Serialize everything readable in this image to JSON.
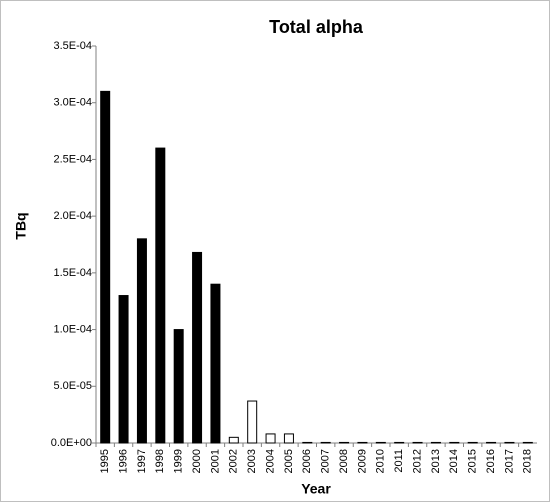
{
  "chart_data": {
    "type": "bar",
    "title": "Total alpha",
    "y_label": "TBq",
    "x_label": "Year",
    "categories": [
      "1995",
      "1996",
      "1997",
      "1998",
      "1999",
      "2000",
      "2001",
      "2002",
      "2003",
      "2004",
      "2005",
      "2006",
      "2007",
      "2008",
      "2009",
      "2010",
      "2011",
      "2012",
      "2013",
      "2014",
      "2015",
      "2016",
      "2017",
      "2018"
    ],
    "values": [
      0.00031,
      0.00013,
      0.00018,
      0.00026,
      0.0001,
      0.000168,
      0.00014,
      5e-06,
      3.7e-05,
      8e-06,
      8e-06,
      5e-07,
      5e-07,
      5e-07,
      5e-07,
      5e-07,
      5e-07,
      5e-07,
      5e-07,
      5e-07,
      5e-07,
      5e-07,
      5e-07,
      5e-07
    ],
    "colors": [
      "#000000",
      "#000000",
      "#000000",
      "#000000",
      "#000000",
      "#000000",
      "#000000",
      "#ffffff",
      "#ffffff",
      "#ffffff",
      "#ffffff",
      "#ffffff",
      "#ffffff",
      "#ffffff",
      "#ffffff",
      "#ffffff",
      "#ffffff",
      "#ffffff",
      "#ffffff",
      "#ffffff",
      "#ffffff",
      "#ffffff",
      "#ffffff",
      "#ffffff"
    ],
    "ylim": [
      0,
      0.00035
    ],
    "yticks": [
      {
        "value": 0,
        "label": "0.0E+00"
      },
      {
        "value": 5e-05,
        "label": "5.0E-05"
      },
      {
        "value": 0.0001,
        "label": "1.0E-04"
      },
      {
        "value": 0.00015,
        "label": "1.5E-04"
      },
      {
        "value": 0.0002,
        "label": "2.0E-04"
      },
      {
        "value": 0.00025,
        "label": "2.5E-04"
      },
      {
        "value": 0.0003,
        "label": "3.0E-04"
      },
      {
        "value": 0.00035,
        "label": "3.5E-04"
      }
    ],
    "grid": false
  }
}
